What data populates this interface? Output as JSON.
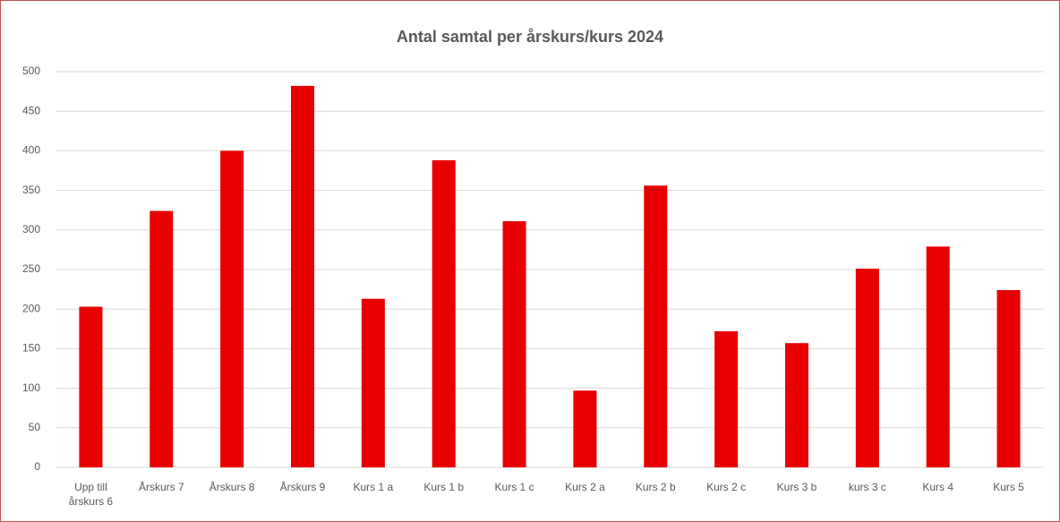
{
  "chart_data": {
    "type": "bar",
    "title": "Antal samtal per årskurs/kurs 2024",
    "categories": [
      "Upp till årskurs 6",
      "Årskurs 7",
      "Årskurs 8",
      "Årskurs 9",
      "Kurs 1 a",
      "Kurs 1 b",
      "Kurs 1 c",
      "Kurs 2 a",
      "Kurs 2 b",
      "Kurs 2 c",
      "Kurs 3 b",
      "kurs 3 c",
      "Kurs 4",
      "Kurs 5"
    ],
    "values": [
      203,
      324,
      400,
      482,
      213,
      388,
      311,
      97,
      356,
      172,
      157,
      251,
      279,
      224
    ],
    "color": "#e80000",
    "ylim": [
      0,
      500
    ],
    "yticks": [
      0,
      50,
      100,
      150,
      200,
      250,
      300,
      350,
      400,
      450,
      500
    ],
    "grid": true
  }
}
